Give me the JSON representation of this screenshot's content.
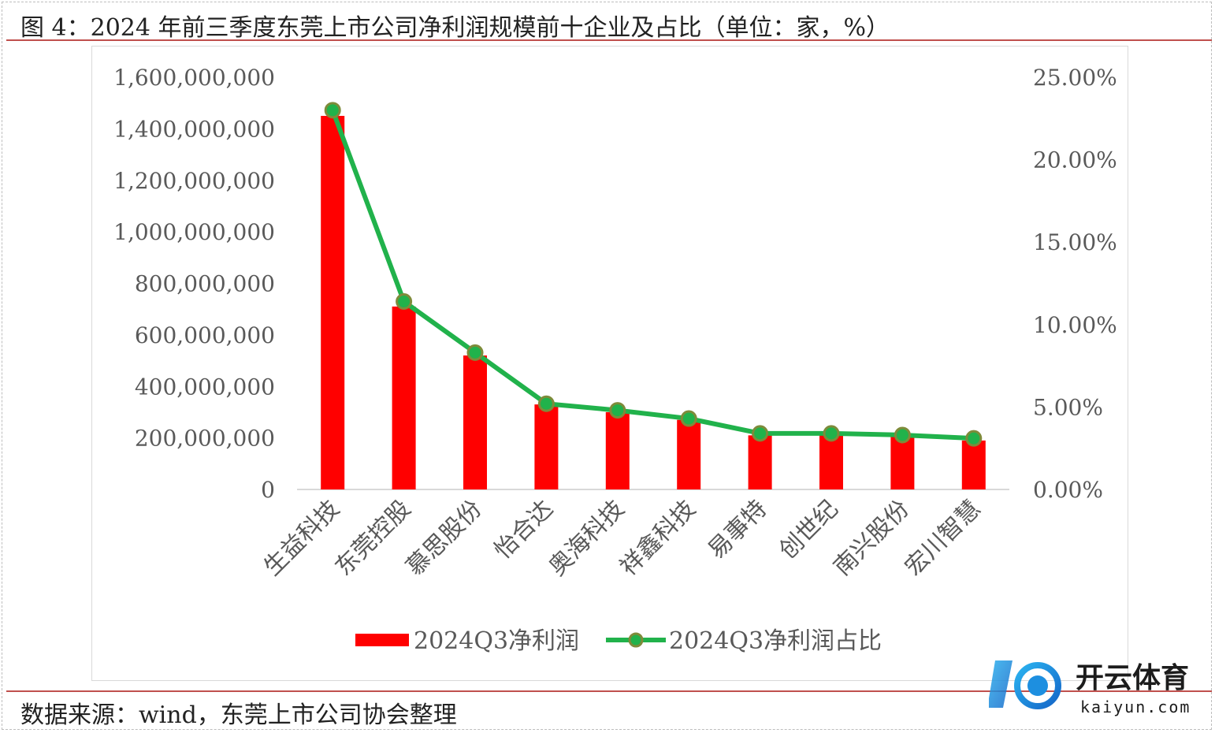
{
  "figure": {
    "title": "图 4：2024 年前三季度东莞上市公司净利润规模前十企业及占比（单位：家，%）",
    "source": "数据来源：wind，东莞上市公司协会整理"
  },
  "watermark": {
    "name": "开云体育",
    "url": "kaiyun.com"
  },
  "colors": {
    "bar": "#ff0000",
    "line": "#21b24b",
    "marker_edge": "#7e8b3a",
    "accent": "#c0504d"
  },
  "chart_data": {
    "type": "bar",
    "categories": [
      "生益科技",
      "东莞控股",
      "慕思股份",
      "怡合达",
      "奥海科技",
      "祥鑫科技",
      "易事特",
      "创世纪",
      "南兴股份",
      "宏川智慧"
    ],
    "series": [
      {
        "name": "2024Q3净利润",
        "type": "bar",
        "axis": "left",
        "values": [
          1450000000,
          710000000,
          520000000,
          330000000,
          300000000,
          270000000,
          210000000,
          210000000,
          205000000,
          190000000
        ]
      },
      {
        "name": "2024Q3净利润占比",
        "type": "line",
        "axis": "right",
        "values": [
          23.0,
          11.4,
          8.3,
          5.2,
          4.8,
          4.3,
          3.4,
          3.4,
          3.3,
          3.1
        ]
      }
    ],
    "y_left": {
      "ticks": [
        "0",
        "200,000,000",
        "400,000,000",
        "600,000,000",
        "800,000,000",
        "1,000,000,000",
        "1,200,000,000",
        "1,400,000,000",
        "1,600,000,000"
      ],
      "ylim": [
        0,
        1600000000
      ]
    },
    "y_right": {
      "ticks": [
        "0.00%",
        "5.00%",
        "10.00%",
        "15.00%",
        "20.00%",
        "25.00%"
      ],
      "ylim": [
        0,
        25
      ]
    },
    "legend_position": "bottom",
    "grid": false
  }
}
